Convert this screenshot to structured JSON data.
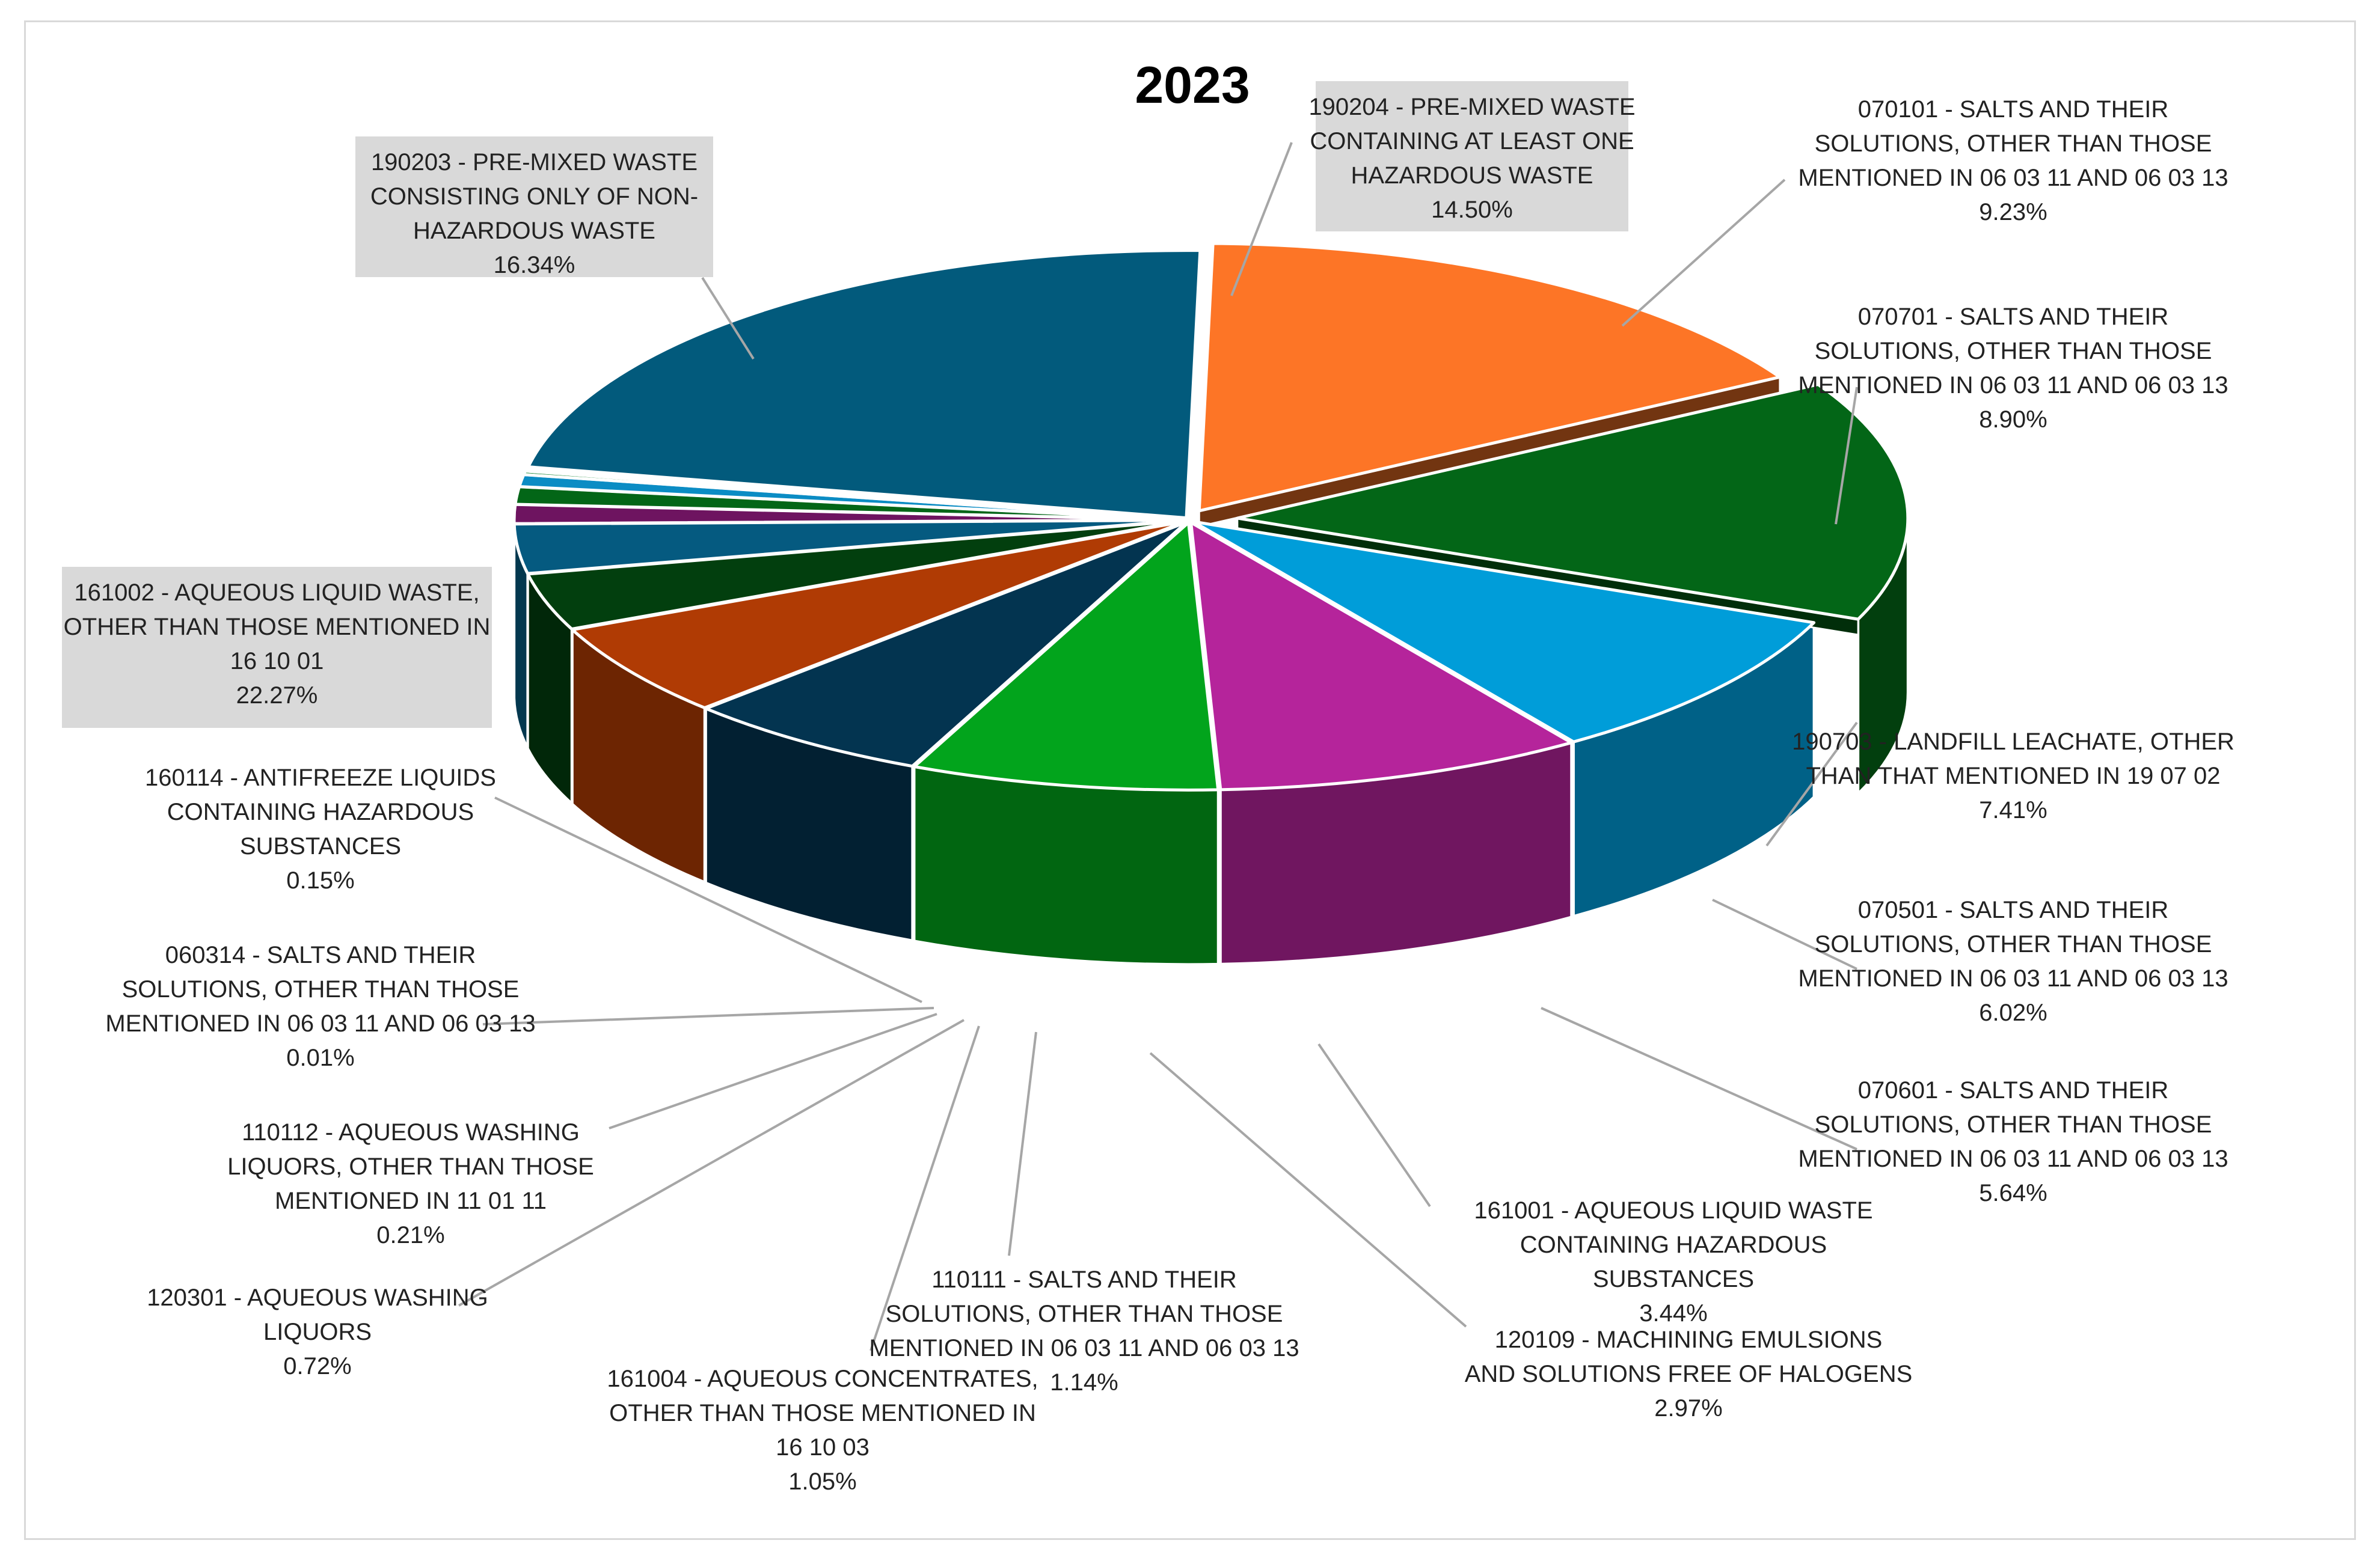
{
  "chart_data": {
    "type": "pie",
    "title": "2023",
    "three_d": true,
    "legend": "none",
    "slices": [
      {
        "name": "190204 - PRE-MIXED WASTE CONTAINING AT LEAST ONE HAZARDOUS WASTE",
        "value": 14.5,
        "label": "14.50%",
        "color": "#036617",
        "exploded": true,
        "label_box": true,
        "label_lines": [
          "190204 - PRE-MIXED WASTE",
          "CONTAINING AT LEAST ONE",
          "HAZARDOUS WASTE",
          "14.50%"
        ]
      },
      {
        "name": "070101 - SALTS AND THEIR SOLUTIONS, OTHER THAN THOSE MENTIONED IN 06 03 11 AND 06 03 13",
        "value": 9.23,
        "label": "9.23%",
        "color": "#009dd9",
        "label_lines": [
          "070101 - SALTS AND THEIR",
          "SOLUTIONS, OTHER THAN THOSE",
          "MENTIONED IN 06 03 11 AND 06 03 13",
          "9.23%"
        ]
      },
      {
        "name": "070701 - SALTS AND THEIR SOLUTIONS, OTHER THAN THOSE MENTIONED IN 06 03 11 AND 06 03 13",
        "value": 8.9,
        "label": "8.90%",
        "color": "#b5249b",
        "label_lines": [
          "070701 - SALTS AND THEIR",
          "SOLUTIONS, OTHER THAN THOSE",
          "MENTIONED IN 06 03 11 AND 06 03 13",
          "8.90%"
        ]
      },
      {
        "name": "190703 - LANDFILL LEACHATE, OTHER THAN THAT MENTIONED IN 19 07 02",
        "value": 7.41,
        "label": "7.41%",
        "color": "#02a41c",
        "label_lines": [
          "190703 - LANDFILL LEACHATE, OTHER",
          "THAN THAT MENTIONED IN 19 07 02",
          "7.41%"
        ]
      },
      {
        "name": "070501 - SALTS AND THEIR SOLUTIONS, OTHER THAN THOSE MENTIONED IN 06 03 11 AND 06 03 13",
        "value": 6.02,
        "label": "6.02%",
        "color": "#033450",
        "label_lines": [
          "070501 - SALTS AND THEIR",
          "SOLUTIONS, OTHER THAN THOSE",
          "MENTIONED IN 06 03 11 AND 06 03 13",
          "6.02%"
        ]
      },
      {
        "name": "070601 - SALTS AND THEIR SOLUTIONS, OTHER THAN THOSE MENTIONED IN 06 03 11 AND 06 03 13",
        "value": 5.64,
        "label": "5.64%",
        "color": "#b03b04",
        "label_lines": [
          "070601 - SALTS AND THEIR",
          "SOLUTIONS, OTHER THAN THOSE",
          "MENTIONED IN 06 03 11 AND 06 03 13",
          "5.64%"
        ]
      },
      {
        "name": "161001 - AQUEOUS LIQUID WASTE CONTAINING HAZARDOUS SUBSTANCES",
        "value": 3.44,
        "label": "3.44%",
        "color": "#023f0e",
        "label_lines": [
          "161001 - AQUEOUS LIQUID WASTE",
          "CONTAINING HAZARDOUS",
          "SUBSTANCES",
          "3.44%"
        ]
      },
      {
        "name": "120109 - MACHINING EMULSIONS AND SOLUTIONS FREE OF HALOGENS",
        "value": 2.97,
        "label": "2.97%",
        "color": "#055a80",
        "label_lines": [
          "120109 - MACHINING EMULSIONS",
          "AND SOLUTIONS FREE OF HALOGENS",
          "2.97%"
        ]
      },
      {
        "name": "110111 - SALTS AND THEIR SOLUTIONS, OTHER THAN THOSE MENTIONED IN 06 03 11 AND 06 03 13",
        "value": 1.14,
        "label": "1.14%",
        "color": "#6e1460",
        "label_lines": [
          "110111 - SALTS AND THEIR",
          "SOLUTIONS, OTHER THAN THOSE",
          "MENTIONED IN 06 03 11 AND 06 03 13",
          "1.14%"
        ]
      },
      {
        "name": "161004 - AQUEOUS CONCENTRATES, OTHER THAN THOSE MENTIONED IN 16 10 03",
        "value": 1.05,
        "label": "1.05%",
        "color": "#036617",
        "label_lines": [
          "161004 - AQUEOUS CONCENTRATES,",
          "OTHER THAN THOSE MENTIONED IN",
          "16 10 03",
          "1.05%"
        ]
      },
      {
        "name": "120301 - AQUEOUS WASHING LIQUORS",
        "value": 0.72,
        "label": "0.72%",
        "color": "#0b8cc4",
        "label_lines": [
          "120301 - AQUEOUS WASHING",
          "LIQUORS",
          "0.72%"
        ]
      },
      {
        "name": "110112 - AQUEOUS WASHING LIQUORS, OTHER THAN THOSE MENTIONED IN 11 01 11",
        "value": 0.21,
        "label": "0.21%",
        "color": "#1f8a3a",
        "label_lines": [
          "110112 - AQUEOUS WASHING",
          "LIQUORS, OTHER THAN THOSE",
          "MENTIONED IN 11 01 11",
          "0.21%"
        ]
      },
      {
        "name": "060314 - SALTS AND THEIR SOLUTIONS, OTHER THAN THOSE MENTIONED IN 06 03 11 AND 06 03 13",
        "value": 0.01,
        "label": "0.01%",
        "color": "#9a2a85",
        "label_lines": [
          "060314 - SALTS AND THEIR",
          "SOLUTIONS, OTHER THAN THOSE",
          "MENTIONED IN 06 03 11 AND 06 03 13",
          "0.01%"
        ]
      },
      {
        "name": "160114 - ANTIFREEZE LIQUIDS CONTAINING HAZARDOUS SUBSTANCES",
        "value": 0.15,
        "label": "0.15%",
        "color": "#ee7635",
        "label_lines": [
          "160114 - ANTIFREEZE LIQUIDS",
          "CONTAINING HAZARDOUS",
          "SUBSTANCES",
          "0.15%"
        ]
      },
      {
        "name": "161002 - AQUEOUS LIQUID WASTE, OTHER THAN THOSE MENTIONED IN 16 10 01",
        "value": 22.27,
        "label": "22.27%",
        "color": "#025a7c",
        "label_box": true,
        "label_lines": [
          "161002 - AQUEOUS LIQUID WASTE,",
          "OTHER THAN THOSE MENTIONED IN",
          "16 10 01",
          "22.27%"
        ]
      },
      {
        "name": "190203 - PRE-MIXED WASTE CONSISTING ONLY OF NON-HAZARDOUS WASTE",
        "value": 16.34,
        "label": "16.34%",
        "color": "#fd7526",
        "label_box": true,
        "label_lines": [
          "190203 - PRE-MIXED WASTE",
          "CONSISTING ONLY OF NON-",
          "HAZARDOUS WASTE",
          "16.34%"
        ]
      }
    ]
  }
}
